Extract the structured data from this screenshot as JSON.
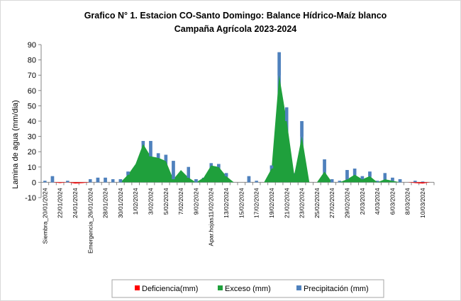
{
  "chart_data": {
    "type": "bar",
    "title_line1": "Grafico N° 1. Estacion CO-Santo Domingo: Balance Hídrico-Maíz blanco",
    "title_line2": "Campaña Agrícola 2023-2024",
    "ylabel": "Lamina de agua (mm/dia)",
    "ylim": [
      -10,
      90
    ],
    "yticks": [
      -10,
      0,
      10,
      20,
      30,
      40,
      50,
      60,
      70,
      80,
      90
    ],
    "grid": false,
    "legend_position": "bottom",
    "colors": {
      "deficiencia": "#ff0000",
      "exceso": "#1fa03c",
      "precipitacion": "#4f81bd"
    },
    "x_tick_labels": [
      "Siembra_20/01/2024",
      "22/01/2024",
      "24/01/2024",
      "Emergencia_26/01/2024",
      "28/01/2024",
      "30/01/2024",
      "1/02/2024",
      "3/02/2024",
      "5/02/2024",
      "7/02/2024",
      "9/02/2024",
      "Apar.hojas11/02/2024",
      "13/02/2024",
      "15/02/2024",
      "17/02/2024",
      "19/02/2024",
      "21/02/2024",
      "23/02/2024",
      "25/02/2024",
      "27/02/2024",
      "29/02/2024",
      "2/03/2024",
      "4/03/2024",
      "6/03/2024",
      "8/03/2024",
      "10/03/2024"
    ],
    "x": [
      "20/01/2024",
      "21/01/2024",
      "22/01/2024",
      "23/01/2024",
      "24/01/2024",
      "25/01/2024",
      "26/01/2024",
      "27/01/2024",
      "28/01/2024",
      "29/01/2024",
      "30/01/2024",
      "31/01/2024",
      "1/02/2024",
      "2/02/2024",
      "3/02/2024",
      "4/02/2024",
      "5/02/2024",
      "6/02/2024",
      "7/02/2024",
      "8/02/2024",
      "9/02/2024",
      "10/02/2024",
      "11/02/2024",
      "12/02/2024",
      "13/02/2024",
      "14/02/2024",
      "15/02/2024",
      "16/02/2024",
      "17/02/2024",
      "18/02/2024",
      "19/02/2024",
      "20/02/2024",
      "21/02/2024",
      "22/02/2024",
      "23/02/2024",
      "24/02/2024",
      "25/02/2024",
      "26/02/2024",
      "27/02/2024",
      "28/02/2024",
      "29/02/2024",
      "1/03/2024",
      "2/03/2024",
      "3/03/2024",
      "4/03/2024",
      "5/03/2024",
      "6/03/2024",
      "7/03/2024",
      "8/03/2024",
      "9/03/2024",
      "10/03/2024",
      "11/03/2024"
    ],
    "series": [
      {
        "name": "Deficiencia(mm)",
        "kind": "area",
        "values": [
          0,
          0,
          -0.5,
          0,
          -0.8,
          -0.5,
          0,
          0,
          0,
          0,
          0,
          0,
          0,
          0,
          0,
          0,
          0,
          0,
          0,
          0,
          0,
          0,
          0,
          0,
          0,
          0,
          0,
          0,
          0,
          0,
          0,
          0,
          0,
          0,
          0,
          0,
          0,
          0,
          0,
          0,
          0,
          0,
          0,
          0,
          0,
          0,
          0,
          0,
          0,
          -0.5,
          -0.8,
          0
        ]
      },
      {
        "name": "Exceso (mm)",
        "kind": "area",
        "values": [
          0,
          0,
          0,
          0,
          0,
          0,
          0,
          0,
          0,
          0,
          0,
          5,
          12,
          25,
          17,
          16,
          14,
          2,
          8,
          3,
          0,
          3,
          11,
          10,
          4,
          0,
          0,
          0,
          0,
          0,
          9,
          70,
          40,
          5,
          30,
          0,
          0,
          7,
          0,
          0,
          2,
          5,
          2,
          4,
          0,
          2,
          1,
          0,
          0,
          0,
          0,
          0
        ]
      },
      {
        "name": "Precipitación (mm)",
        "kind": "bar",
        "values": [
          1,
          4,
          0,
          1,
          0,
          0,
          2,
          3,
          3,
          2,
          2,
          7,
          5,
          27,
          27,
          19,
          18,
          14,
          5,
          10,
          2,
          3,
          12.5,
          12,
          6,
          0,
          0,
          4,
          1,
          0,
          11,
          85,
          49,
          6,
          40,
          0,
          0,
          15,
          2,
          1,
          8,
          9,
          4,
          7,
          1,
          6,
          3,
          2,
          0,
          1,
          0.5,
          0
        ]
      }
    ]
  }
}
